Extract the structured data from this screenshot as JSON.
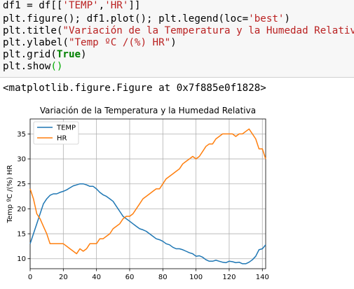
{
  "code": {
    "line1": {
      "a": "df1 = df[[",
      "s1": "'TEMP'",
      "b": ",",
      "s2": "'HR'",
      "c": "]]"
    },
    "line2": {
      "a": "plt.figure(); df1.plot(); plt.legend(loc=",
      "s1": "'best'",
      "b": ")"
    },
    "line3": {
      "a": "plt.title(",
      "s1": "\"Variación de la Temperatura y la Humedad Relativa\"",
      "b": ")"
    },
    "line4": {
      "a": "plt.ylabel(",
      "s1": "\"Temp ºC /(%) HR\"",
      "b": ")"
    },
    "line5": {
      "a": "plt.grid(",
      "kw": "True",
      "b": ")"
    },
    "line6": {
      "a": "plt.show",
      "p": "()"
    }
  },
  "output_text": "<matplotlib.figure.Figure at 0x7f885e0f1828>",
  "chart_data": {
    "type": "line",
    "title": "Variación de la Temperatura y la Humedad Relativa",
    "xlabel": "",
    "ylabel": "Temp ºC /(%) HR",
    "xlim": [
      0,
      142
    ],
    "ylim": [
      8,
      38
    ],
    "xticks": [
      0,
      20,
      40,
      60,
      80,
      100,
      120,
      140
    ],
    "yticks": [
      10,
      15,
      20,
      25,
      30,
      35
    ],
    "grid": true,
    "legend_position": "upper-left",
    "series": [
      {
        "name": "TEMP",
        "color": "#1f77b4",
        "points": [
          [
            0,
            13
          ],
          [
            2,
            15
          ],
          [
            4,
            17
          ],
          [
            6,
            19
          ],
          [
            8,
            21
          ],
          [
            10,
            22
          ],
          [
            12,
            22.7
          ],
          [
            14,
            23
          ],
          [
            16,
            23
          ],
          [
            18,
            23.3
          ],
          [
            20,
            23.5
          ],
          [
            22,
            23.8
          ],
          [
            24,
            24.2
          ],
          [
            26,
            24.6
          ],
          [
            28,
            24.8
          ],
          [
            30,
            25
          ],
          [
            32,
            25
          ],
          [
            34,
            24.8
          ],
          [
            36,
            24.5
          ],
          [
            38,
            24.5
          ],
          [
            40,
            24
          ],
          [
            42,
            23.3
          ],
          [
            44,
            22.8
          ],
          [
            46,
            22.5
          ],
          [
            48,
            22
          ],
          [
            50,
            21.5
          ],
          [
            52,
            20.5
          ],
          [
            54,
            19.5
          ],
          [
            56,
            18.5
          ],
          [
            58,
            18
          ],
          [
            60,
            17.5
          ],
          [
            62,
            17
          ],
          [
            64,
            16.5
          ],
          [
            66,
            16
          ],
          [
            68,
            15.8
          ],
          [
            70,
            15.5
          ],
          [
            72,
            15
          ],
          [
            74,
            14.5
          ],
          [
            76,
            14
          ],
          [
            78,
            13.8
          ],
          [
            80,
            13.5
          ],
          [
            82,
            13
          ],
          [
            84,
            12.8
          ],
          [
            86,
            12.3
          ],
          [
            88,
            12
          ],
          [
            90,
            12
          ],
          [
            92,
            11.8
          ],
          [
            94,
            11.5
          ],
          [
            96,
            11.2
          ],
          [
            98,
            11
          ],
          [
            100,
            10.5
          ],
          [
            102,
            10.6
          ],
          [
            104,
            10.3
          ],
          [
            106,
            9.8
          ],
          [
            108,
            9.5
          ],
          [
            110,
            9.5
          ],
          [
            112,
            9.7
          ],
          [
            114,
            9.5
          ],
          [
            116,
            9.3
          ],
          [
            118,
            9.2
          ],
          [
            120,
            9.5
          ],
          [
            122,
            9.4
          ],
          [
            124,
            9.2
          ],
          [
            126,
            9.3
          ],
          [
            128,
            9
          ],
          [
            130,
            9
          ],
          [
            132,
            9.3
          ],
          [
            134,
            9.8
          ],
          [
            136,
            10.5
          ],
          [
            138,
            11.8
          ],
          [
            140,
            12
          ],
          [
            142,
            12.8
          ]
        ]
      },
      {
        "name": "HR",
        "color": "#ff7f0e",
        "points": [
          [
            0,
            24
          ],
          [
            2,
            22
          ],
          [
            4,
            19
          ],
          [
            6,
            18
          ],
          [
            8,
            16.5
          ],
          [
            10,
            15
          ],
          [
            12,
            13
          ],
          [
            14,
            13
          ],
          [
            16,
            13
          ],
          [
            18,
            13
          ],
          [
            20,
            13
          ],
          [
            22,
            12.5
          ],
          [
            24,
            12
          ],
          [
            26,
            11.5
          ],
          [
            28,
            11
          ],
          [
            30,
            12
          ],
          [
            32,
            11.5
          ],
          [
            34,
            12
          ],
          [
            36,
            13
          ],
          [
            38,
            13
          ],
          [
            40,
            13
          ],
          [
            42,
            14
          ],
          [
            44,
            14
          ],
          [
            46,
            14.5
          ],
          [
            48,
            15
          ],
          [
            50,
            16
          ],
          [
            52,
            16.5
          ],
          [
            54,
            17
          ],
          [
            56,
            18
          ],
          [
            58,
            18.5
          ],
          [
            60,
            18.5
          ],
          [
            62,
            19
          ],
          [
            64,
            20
          ],
          [
            66,
            21
          ],
          [
            68,
            22
          ],
          [
            70,
            22.5
          ],
          [
            72,
            23
          ],
          [
            74,
            23.5
          ],
          [
            76,
            24
          ],
          [
            78,
            24
          ],
          [
            80,
            25
          ],
          [
            82,
            26
          ],
          [
            84,
            26.5
          ],
          [
            86,
            27
          ],
          [
            88,
            27.5
          ],
          [
            90,
            28
          ],
          [
            92,
            29
          ],
          [
            94,
            29.5
          ],
          [
            96,
            30
          ],
          [
            98,
            30.5
          ],
          [
            100,
            30
          ],
          [
            102,
            30.5
          ],
          [
            104,
            31.5
          ],
          [
            106,
            32.5
          ],
          [
            108,
            33
          ],
          [
            110,
            33
          ],
          [
            112,
            34
          ],
          [
            114,
            34.5
          ],
          [
            116,
            35
          ],
          [
            118,
            35
          ],
          [
            120,
            35
          ],
          [
            122,
            35
          ],
          [
            124,
            34.5
          ],
          [
            126,
            35
          ],
          [
            128,
            35
          ],
          [
            130,
            35.5
          ],
          [
            132,
            36
          ],
          [
            134,
            35
          ],
          [
            136,
            34
          ],
          [
            138,
            32
          ],
          [
            140,
            32
          ],
          [
            142,
            30
          ]
        ]
      }
    ]
  }
}
